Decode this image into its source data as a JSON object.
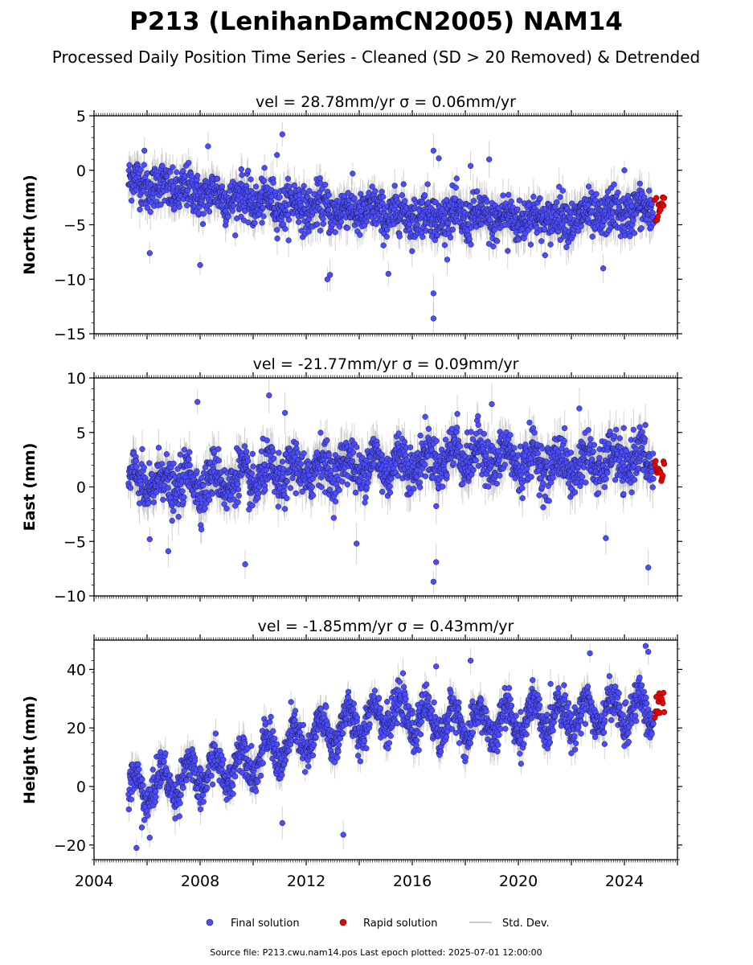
{
  "title": "P213 (LenihanDamCN2005) NAM14",
  "subtitle": "Processed Daily Position Time Series - Cleaned (SD > 20 Removed) & Detrended",
  "footer": "Source file: P213.cwu.nam14.pos  Last epoch plotted: 2025-07-01 12:00:00",
  "legend": {
    "final_label": "Final solution",
    "rapid_label": "Rapid solution",
    "std_label": "Std. Dev."
  },
  "colors": {
    "final": "#4c4cff",
    "rapid": "#ee0000",
    "std": "#b0b0b0"
  },
  "chart_data": [
    {
      "type": "scatter",
      "panel_title": "vel = 28.78mm/yr   σ = 0.06mm/yr",
      "ylabel": "North (mm)",
      "xlim": [
        2004,
        2026
      ],
      "ylim": [
        -15,
        5
      ],
      "yticks": [
        5,
        0,
        -5,
        -10,
        -15
      ],
      "ytick_labels": [
        "5",
        "0",
        "−5",
        "−10",
        "−15"
      ],
      "x_start": 2005.3,
      "x_end": 2025.1,
      "rapid_x_end": 2025.5,
      "trend": [
        [
          2005.3,
          -1.0
        ],
        [
          2007,
          -1.8
        ],
        [
          2010,
          -2.8
        ],
        [
          2013,
          -3.6
        ],
        [
          2016,
          -4.1
        ],
        [
          2019,
          -4.4
        ],
        [
          2022,
          -4.4
        ],
        [
          2025.1,
          -3.6
        ]
      ],
      "seasonal_amplitude": 0.5,
      "noise": 1.0,
      "rapid_range": [
        -4.7,
        -2.3
      ],
      "outliers": [
        [
          2005.9,
          1.8
        ],
        [
          2008.3,
          2.2
        ],
        [
          2010.9,
          1.4
        ],
        [
          2011.1,
          3.3
        ],
        [
          2016.8,
          1.8
        ],
        [
          2017.0,
          1.1
        ],
        [
          2018.2,
          0.4
        ],
        [
          2018.9,
          1.0
        ],
        [
          2024.0,
          0.0
        ],
        [
          2016.8,
          -11.3
        ],
        [
          2016.8,
          -13.6
        ],
        [
          2008.0,
          -8.7
        ],
        [
          2006.1,
          -7.6
        ],
        [
          2012.9,
          -9.6
        ],
        [
          2012.8,
          -10.0
        ],
        [
          2015.1,
          -9.5
        ],
        [
          2023.2,
          -9.0
        ],
        [
          2019.6,
          -7.4
        ]
      ]
    },
    {
      "type": "scatter",
      "panel_title": "vel = -21.77mm/yr   σ = 0.09mm/yr",
      "ylabel": "East (mm)",
      "xlim": [
        2004,
        2026
      ],
      "ylim": [
        -10,
        10
      ],
      "yticks": [
        10,
        5,
        0,
        -5,
        -10
      ],
      "ytick_labels": [
        "10",
        "5",
        "0",
        "−5",
        "−10"
      ],
      "x_start": 2005.3,
      "x_end": 2025.1,
      "rapid_x_end": 2025.5,
      "trend": [
        [
          2005.3,
          0.3
        ],
        [
          2008,
          0.4
        ],
        [
          2010,
          0.8
        ],
        [
          2013,
          1.8
        ],
        [
          2016,
          2.2
        ],
        [
          2018,
          3.0
        ],
        [
          2020,
          2.4
        ],
        [
          2022,
          2.0
        ],
        [
          2025.1,
          2.6
        ]
      ],
      "seasonal_amplitude": 1.0,
      "noise": 1.1,
      "rapid_range": [
        0.2,
        2.4
      ],
      "outliers": [
        [
          2007.9,
          7.8
        ],
        [
          2010.6,
          8.4
        ],
        [
          2011.2,
          6.8
        ],
        [
          2017.7,
          6.7
        ],
        [
          2019.0,
          7.6
        ],
        [
          2022.3,
          7.2
        ],
        [
          2009.7,
          -7.1
        ],
        [
          2016.8,
          -8.7
        ],
        [
          2016.9,
          -6.9
        ],
        [
          2024.9,
          -7.4
        ],
        [
          2023.3,
          -4.7
        ],
        [
          2006.1,
          -4.8
        ],
        [
          2006.8,
          -5.9
        ],
        [
          2013.9,
          -5.2
        ]
      ]
    },
    {
      "type": "scatter",
      "panel_title": "vel = -1.85mm/yr   σ = 0.43mm/yr",
      "ylabel": "Height (mm)",
      "xlim": [
        2004,
        2026
      ],
      "ylim": [
        -25,
        50
      ],
      "yticks": [
        40,
        20,
        0,
        -20
      ],
      "ytick_labels": [
        "40",
        "20",
        "0",
        "−20"
      ],
      "xticks": [
        2004,
        2008,
        2012,
        2016,
        2020,
        2024
      ],
      "xtick_labels": [
        "2004",
        "2008",
        "2012",
        "2016",
        "2020",
        "2024"
      ],
      "x_start": 2005.3,
      "x_end": 2025.1,
      "rapid_x_end": 2025.5,
      "trend": [
        [
          2005.3,
          -2
        ],
        [
          2007,
          2
        ],
        [
          2009,
          6
        ],
        [
          2011,
          13
        ],
        [
          2013,
          19
        ],
        [
          2015,
          25
        ],
        [
          2017,
          22
        ],
        [
          2019,
          21
        ],
        [
          2021,
          24
        ],
        [
          2023,
          25
        ],
        [
          2025.1,
          26
        ]
      ],
      "seasonal_amplitude": 5.5,
      "noise": 3.2,
      "rapid_range": [
        22,
        32
      ],
      "outliers": [
        [
          2013.4,
          -16.5
        ],
        [
          2011.1,
          -12.5
        ],
        [
          2005.8,
          -14.0
        ],
        [
          2006.1,
          -17.5
        ],
        [
          2005.6,
          -21.0
        ],
        [
          2018.2,
          43.0
        ],
        [
          2024.8,
          48.0
        ],
        [
          2024.9,
          46.0
        ],
        [
          2022.7,
          45.5
        ],
        [
          2016.9,
          41.0
        ]
      ]
    }
  ]
}
